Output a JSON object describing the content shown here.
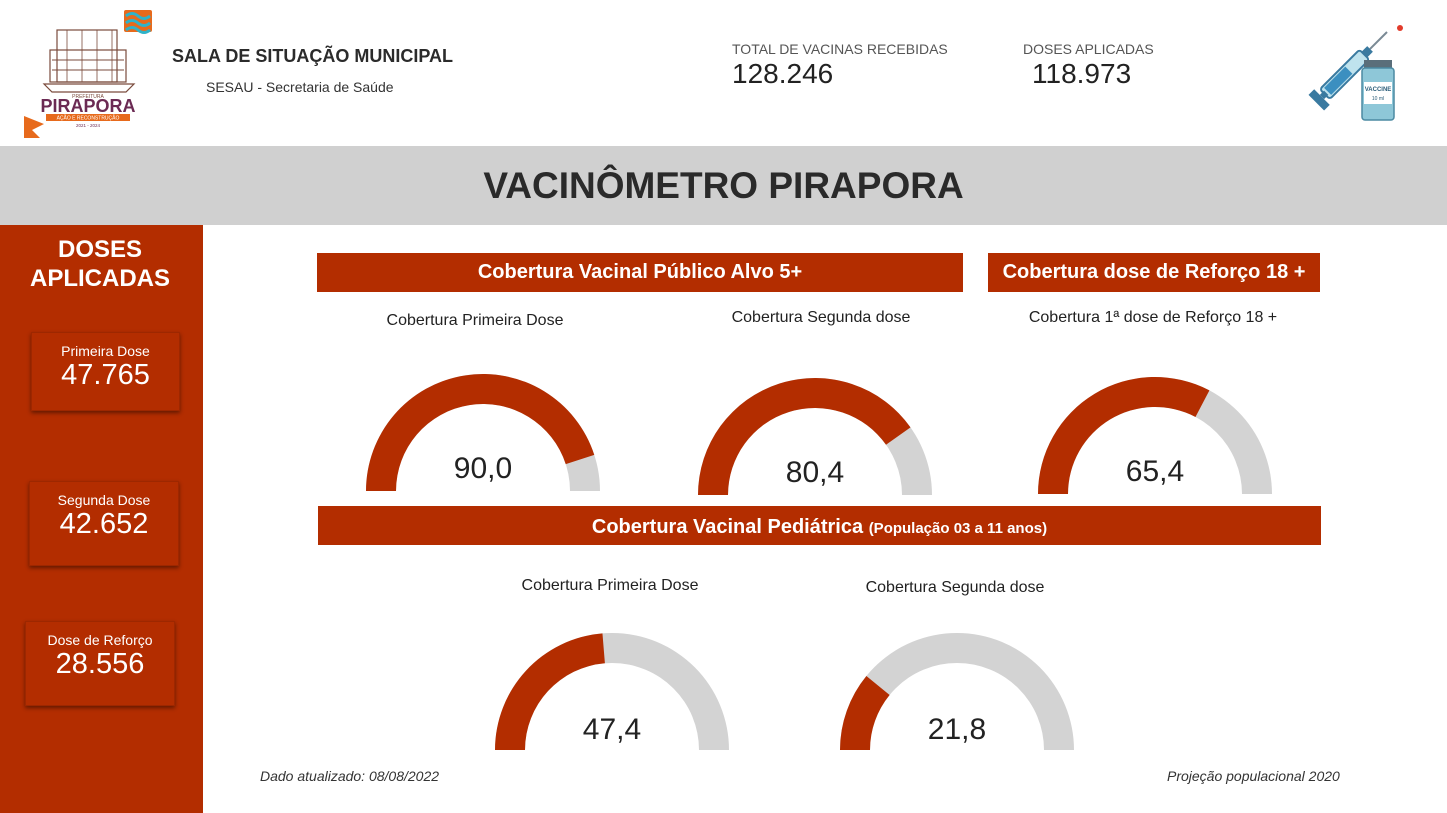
{
  "header": {
    "logo": {
      "city_name": "PIRAPORA",
      "small_text": "PREFEITURA",
      "tagline": "AÇÃO E RECONSTRUÇÃO",
      "years": "2021 - 2024"
    },
    "title": "SALA DE SITUAÇÃO MUNICIPAL",
    "subtitle": "SESAU - Secretaria de Saúde",
    "total_received_label": "TOTAL DE VACINAS RECEBIDAS",
    "total_received_value": "128.246",
    "doses_applied_label": "DOSES APLICADAS",
    "doses_applied_value": "118.973",
    "vaccine_label": "VACCINE",
    "vaccine_ml": "10 ml"
  },
  "banner": {
    "title": "VACINÔMETRO PIRAPORA"
  },
  "sidebar": {
    "title": "DOSES APLICADAS",
    "cards": [
      {
        "label": "Primeira Dose",
        "value": "47.765"
      },
      {
        "label": "Segunda Dose",
        "value": "42.652"
      },
      {
        "label": "Dose de Reforço",
        "value": "28.556"
      }
    ]
  },
  "sections": {
    "adult": "Cobertura Vacinal Público Alvo 5+",
    "booster": "Cobertura dose de Reforço 18 +",
    "pediatric": "Cobertura Vacinal Pediátrica",
    "pediatric_note": "(População 03 a 11 anos)"
  },
  "gauges": [
    {
      "title": "Cobertura Primeira Dose",
      "value": 90.0,
      "label": "90,0"
    },
    {
      "title": "Cobertura Segunda dose",
      "value": 80.4,
      "label": "80,4"
    },
    {
      "title": "Cobertura 1ª dose de Reforço 18 +",
      "value": 65.4,
      "label": "65,4"
    },
    {
      "title": "Cobertura Primeira Dose",
      "value": 47.4,
      "label": "47,4"
    },
    {
      "title": "Cobertura Segunda dose",
      "value": 21.8,
      "label": "21,8"
    }
  ],
  "footer": {
    "updated": "Dado atualizado: 08/08/2022",
    "projection": "Projeção populacional 2020"
  },
  "colors": {
    "accent": "#b32d00",
    "track": "#d3d3d3",
    "banner": "#d0d0d0"
  }
}
